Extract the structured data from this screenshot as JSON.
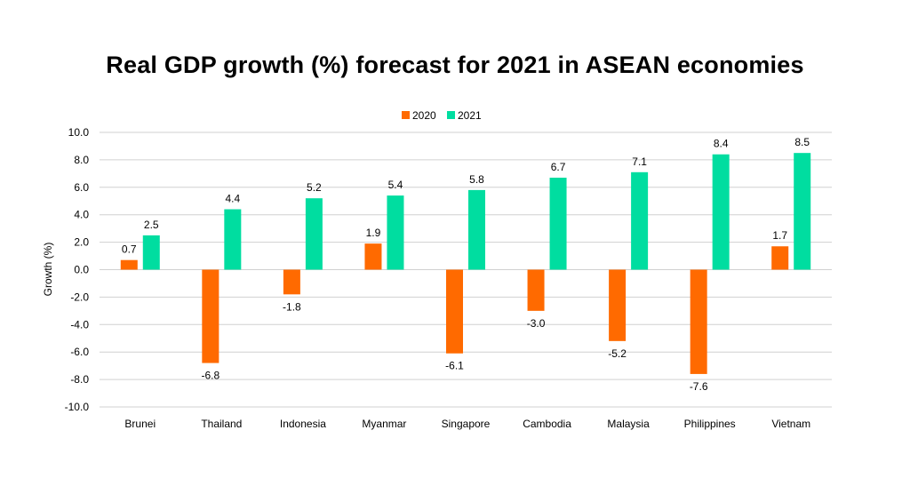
{
  "chart_data": {
    "type": "bar",
    "title": "Real GDP growth (%) forecast for 2021 in ASEAN economies",
    "ylabel": "Growth (%)",
    "xlabel": "",
    "ylim": [
      -10,
      10
    ],
    "ytick_step": 2,
    "ytick_labels": [
      "10.0",
      "8.0",
      "6.0",
      "4.0",
      "2.0",
      "0.0",
      "-2.0",
      "-4.0",
      "-6.0",
      "-8.0",
      "-10.0"
    ],
    "grid": true,
    "legend_position": "top-center",
    "categories": [
      "Brunei",
      "Thailand",
      "Indonesia",
      "Myanmar",
      "Singapore",
      "Cambodia",
      "Malaysia",
      "Philippines",
      "Vietnam"
    ],
    "series": [
      {
        "name": "2020",
        "color": "#FF6A00",
        "values": [
          0.7,
          -6.8,
          -1.8,
          1.9,
          -6.1,
          -3.0,
          -5.2,
          -7.6,
          1.7
        ],
        "labels": [
          "0.7",
          "-6.8",
          "-1.8",
          "1.9",
          "-6.1",
          "-3.0",
          "-5.2",
          "-7.6",
          "1.7"
        ]
      },
      {
        "name": "2021",
        "color": "#00DDA0",
        "values": [
          2.5,
          4.4,
          5.2,
          5.4,
          5.8,
          6.7,
          7.1,
          8.4,
          8.5
        ],
        "labels": [
          "2.5",
          "4.4",
          "5.2",
          "5.4",
          "5.8",
          "6.7",
          "7.1",
          "8.4",
          "8.5"
        ]
      }
    ]
  }
}
